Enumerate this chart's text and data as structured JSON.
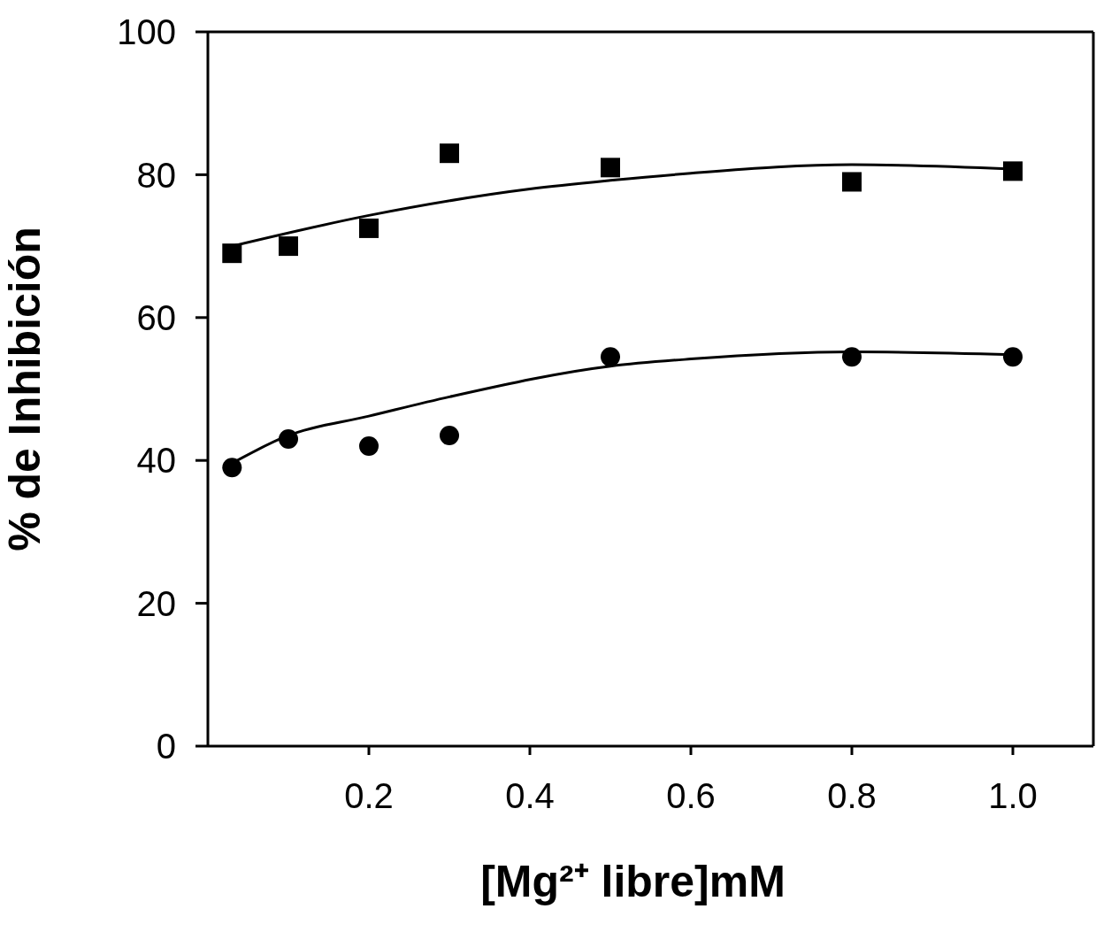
{
  "chart_data": {
    "type": "scatter",
    "xlabel": "[Mg²⁺ libre]mM",
    "ylabel": "% de Inhibición",
    "xlim": [
      0,
      1.1
    ],
    "xticks": [
      {
        "value": 0.2,
        "label": "0.2"
      },
      {
        "value": 0.4,
        "label": "0.4"
      },
      {
        "value": 0.6,
        "label": "0.6"
      },
      {
        "value": 0.8,
        "label": "0.8"
      },
      {
        "value": 1.0,
        "label": "1.0"
      }
    ],
    "ylim": [
      0,
      100
    ],
    "yticks": [
      0,
      20,
      40,
      60,
      80,
      100
    ],
    "series": [
      {
        "marker": "square",
        "color": "#000000",
        "x": [
          0.03,
          0.1,
          0.2,
          0.3,
          0.5,
          0.8,
          1.0
        ],
        "values": [
          69,
          70,
          72.5,
          83,
          81,
          79,
          80.5
        ]
      },
      {
        "marker": "circle",
        "color": "#000000",
        "x": [
          0.03,
          0.1,
          0.2,
          0.3,
          0.5,
          0.8,
          1.0
        ],
        "values": [
          39,
          43,
          42,
          43.5,
          54.5,
          54.5,
          54.5
        ]
      },
      {
        "type": "line",
        "marker": "none",
        "color": "#000000",
        "x": [
          0.03,
          0.2,
          0.4,
          0.5,
          0.6,
          0.8,
          1.0
        ],
        "values": [
          70,
          74.3,
          78,
          79.2,
          80.2,
          81.4,
          80.8
        ]
      },
      {
        "type": "line",
        "marker": "none",
        "color": "#000000",
        "x": [
          0.03,
          0.1,
          0.2,
          0.3,
          0.5,
          0.6,
          0.8,
          1.0
        ],
        "values": [
          39.6,
          43.5,
          46.2,
          48.9,
          53.2,
          54.2,
          55.2,
          54.8
        ]
      }
    ]
  }
}
